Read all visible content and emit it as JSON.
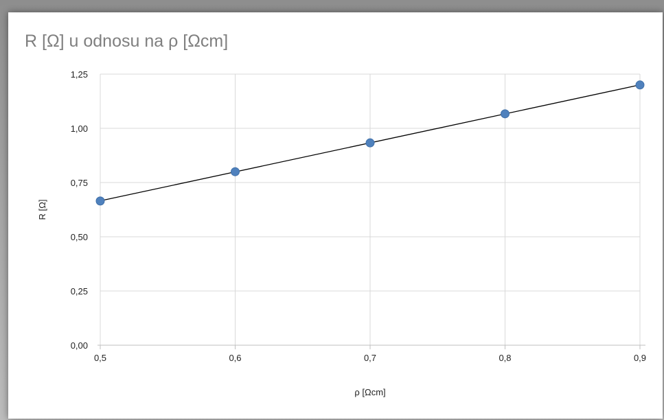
{
  "chart_data": {
    "type": "scatter",
    "title": "R [Ω] u odnosu na ρ [Ωcm]",
    "xlabel": "ρ [Ωcm]",
    "ylabel": "R [Ω]",
    "xlim": [
      0.5,
      0.9
    ],
    "ylim": [
      0,
      1.25
    ],
    "x_ticks": [
      "0,5",
      "0,6",
      "0,7",
      "0,8",
      "0,9"
    ],
    "y_ticks": [
      "0,00",
      "0,25",
      "0,50",
      "0,75",
      "1,00",
      "1,25"
    ],
    "grid": true,
    "trendline": "linear",
    "series": [
      {
        "x": [
          0.5,
          0.6,
          0.7,
          0.8,
          0.9
        ],
        "y": [
          0.665,
          0.8,
          0.933,
          1.067,
          1.2
        ]
      }
    ],
    "colors": {
      "points": "#4f81bd",
      "trendline": "#000000",
      "grid": "#d9d9d9"
    }
  }
}
